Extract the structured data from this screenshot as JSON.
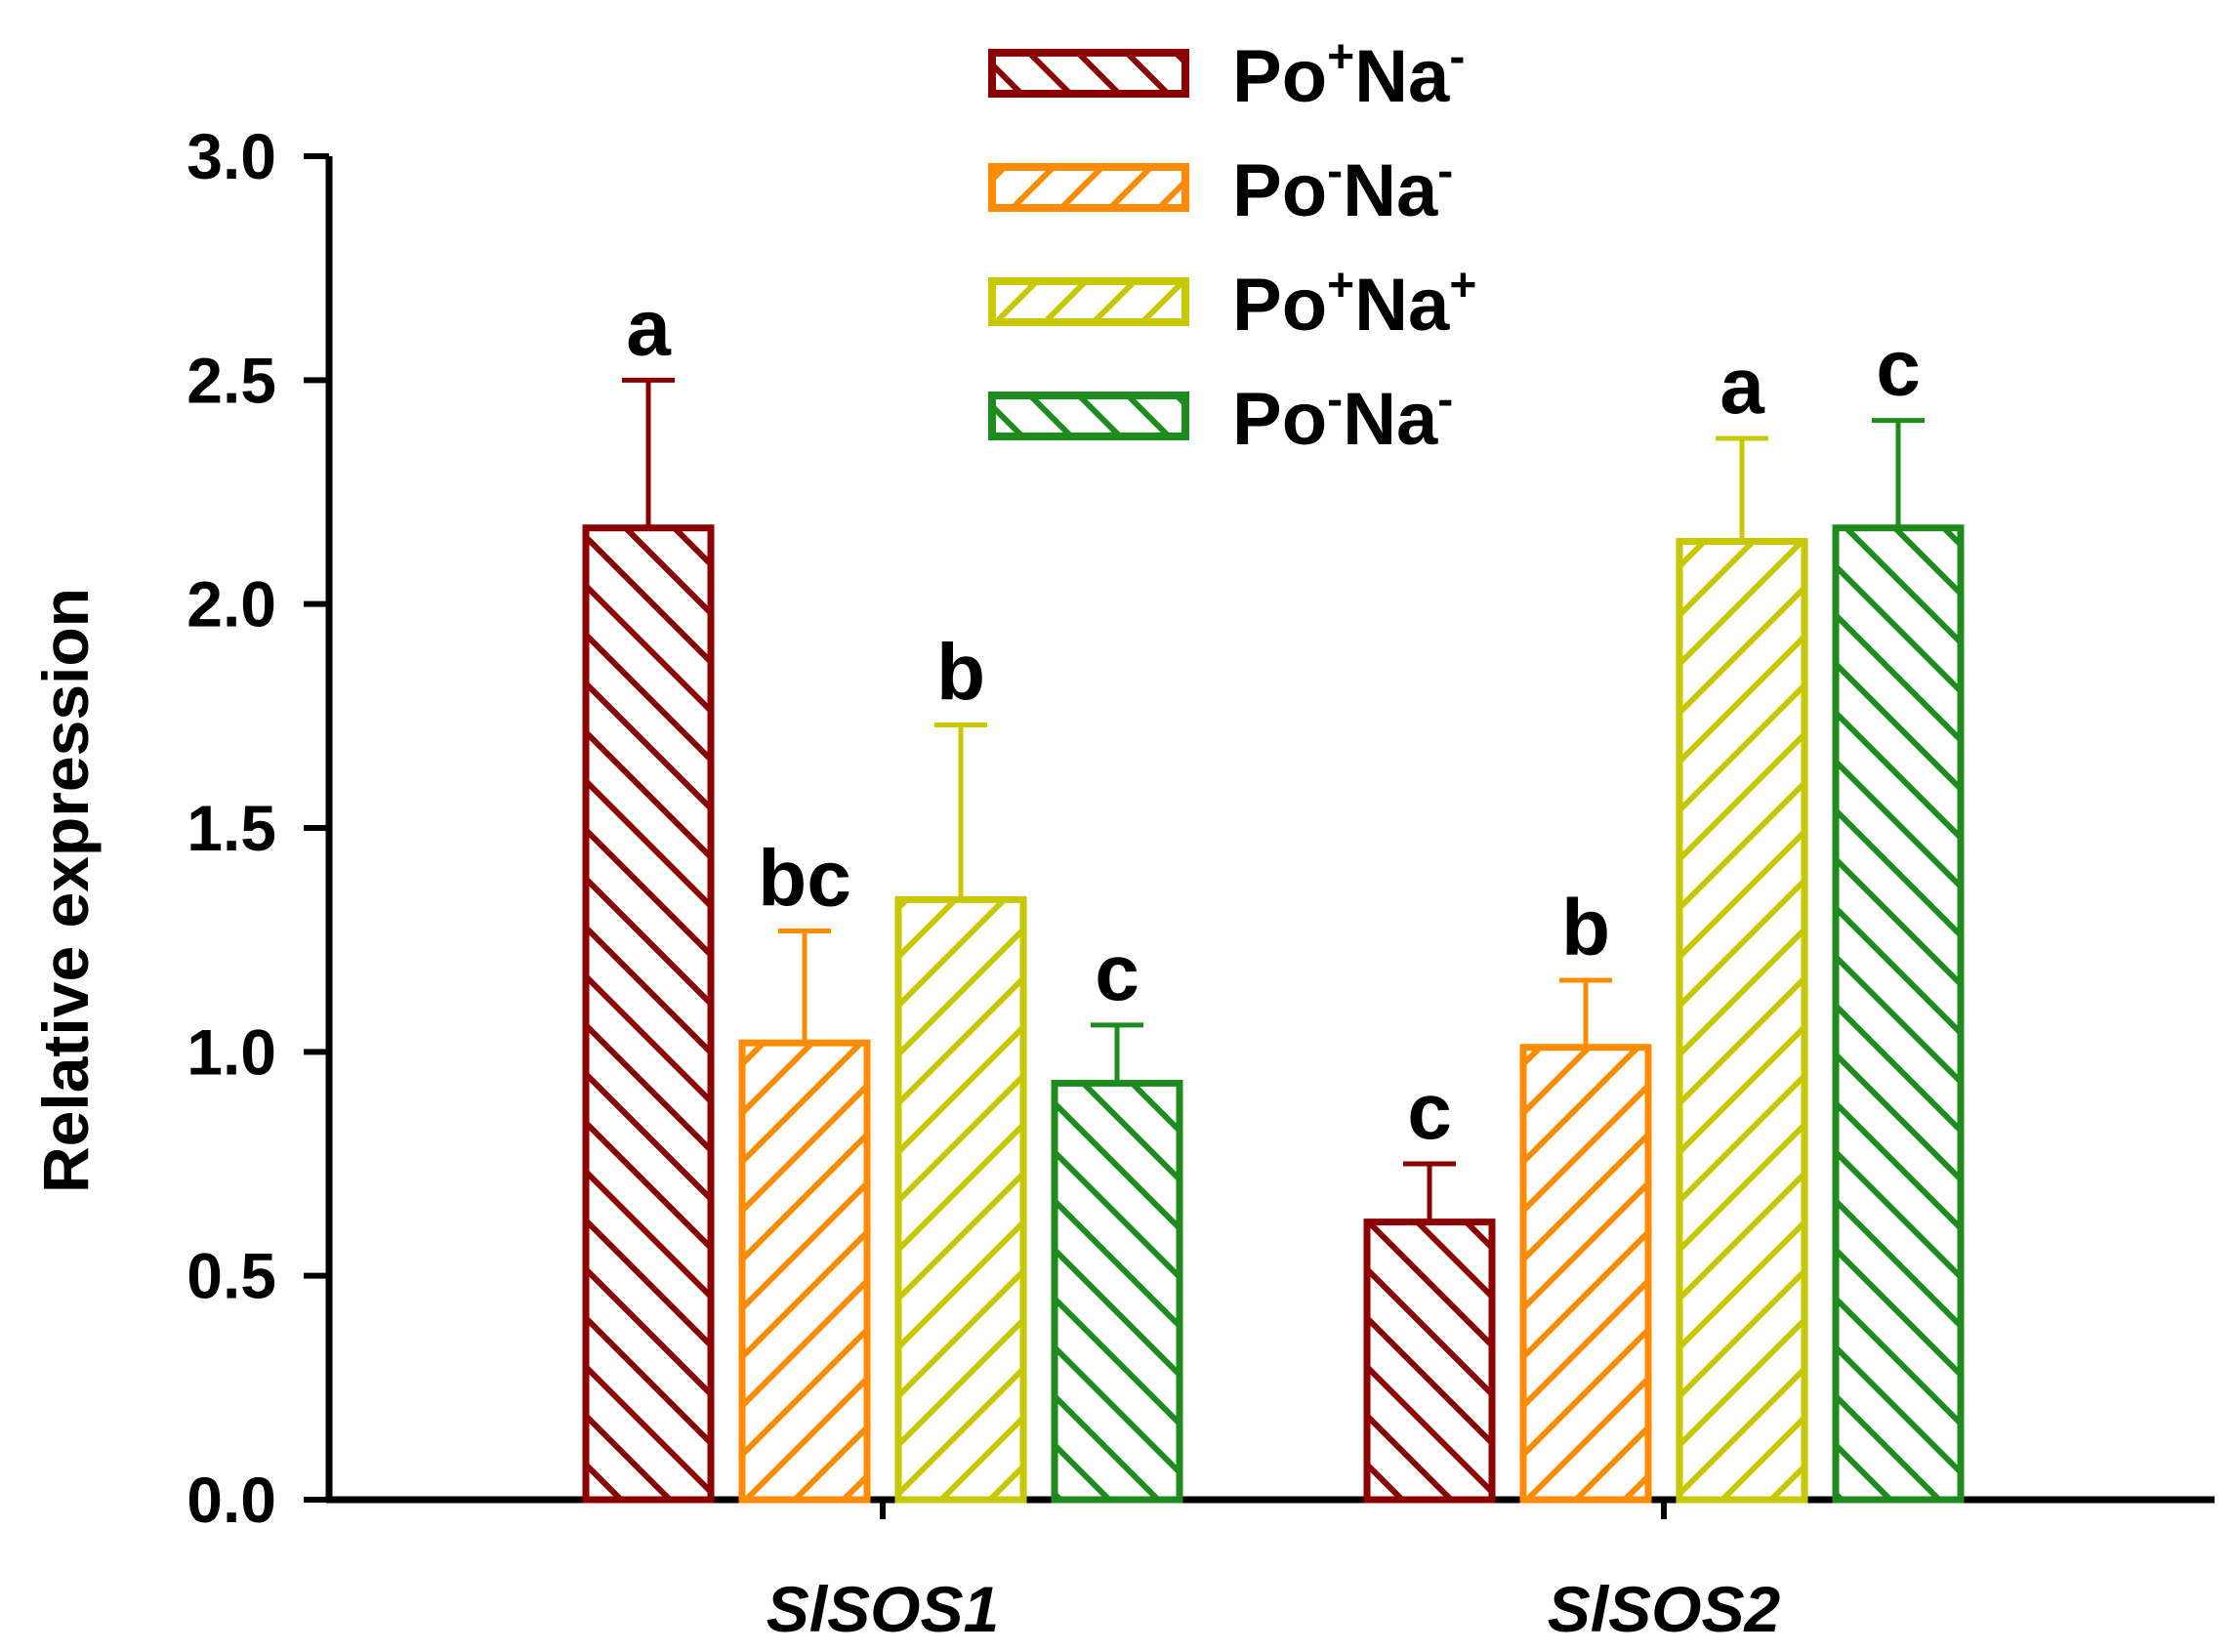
{
  "chart_data": {
    "type": "bar",
    "title": "",
    "xlabel": "",
    "ylabel": "Relative expression",
    "ylim": [
      0,
      3.0
    ],
    "yticks": [
      "0.0",
      "0.5",
      "1.0",
      "1.5",
      "2.0",
      "2.5",
      "3.0"
    ],
    "categories": [
      "SlSOS1",
      "SlSOS2"
    ],
    "series": [
      {
        "name": "Po+Na-",
        "legend": {
          "base1": "Po",
          "sup1": "+",
          "base2": "Na",
          "sup2": "-"
        },
        "color": "#8B0000",
        "hatch": "back",
        "values": [
          2.17,
          0.62
        ],
        "errors": [
          0.33,
          0.13
        ],
        "letters": [
          "a",
          "c"
        ]
      },
      {
        "name": "Po-Na-",
        "legend": {
          "base1": "Po",
          "sup1": "-",
          "base2": "Na",
          "sup2": "-"
        },
        "color": "#FF8C00",
        "hatch": "forward",
        "values": [
          1.02,
          1.01
        ],
        "errors": [
          0.25,
          0.15
        ],
        "letters": [
          "bc",
          "b"
        ]
      },
      {
        "name": "Po+Na+",
        "legend": {
          "base1": "Po",
          "sup1": "+",
          "base2": "Na",
          "sup2": "+"
        },
        "color": "#C8C800",
        "hatch": "forward",
        "values": [
          1.34,
          2.14
        ],
        "errors": [
          0.39,
          0.23
        ],
        "letters": [
          "b",
          "a"
        ]
      },
      {
        "name": "Po-Na-",
        "legend": {
          "base1": "Po",
          "sup1": "-",
          "base2": "Na",
          "sup2": "-"
        },
        "color": "#1E8B1E",
        "hatch": "back",
        "values": [
          0.93,
          2.17
        ],
        "errors": [
          0.13,
          0.24
        ],
        "letters": [
          "c",
          "c"
        ]
      }
    ]
  }
}
